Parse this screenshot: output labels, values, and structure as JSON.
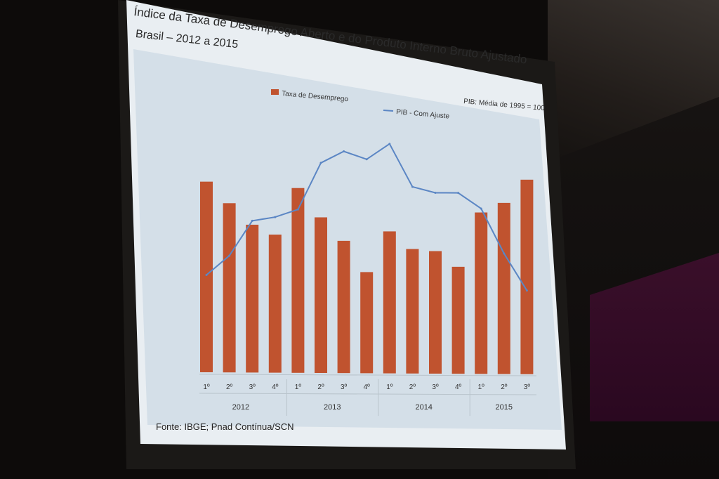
{
  "slide": {
    "title": "Índice da Taxa de Desemprego Aberto e do Produto Interno Bruto Ajustado",
    "subtitle": "Brasil – 2012 a 2015",
    "source": "Fonte: IBGE; Pnad Contínua/SCN"
  },
  "chart_data": {
    "type": "bar",
    "note": "PIB: Média de 1995 = 100",
    "categories": [
      "1º",
      "2º",
      "3º",
      "4º",
      "1º",
      "2º",
      "3º",
      "4º",
      "1º",
      "2º",
      "3º",
      "4º",
      "1º",
      "2º",
      "3º"
    ],
    "years": [
      {
        "label": "2012",
        "count": 4
      },
      {
        "label": "2013",
        "count": 4
      },
      {
        "label": "2014",
        "count": 4
      },
      {
        "label": "2015",
        "count": 3
      }
    ],
    "series": [
      {
        "name": "Taxa de Desemprego",
        "kind": "bar",
        "color": "#c0532f",
        "values": [
          98,
          87,
          76,
          71,
          95,
          80,
          68,
          52,
          73,
          64,
          63,
          55,
          83,
          88,
          100
        ]
      },
      {
        "name": "PIB - Com Ajuste",
        "kind": "line",
        "color": "#5b86c4",
        "values": [
          50,
          60,
          78,
          80,
          84,
          108,
          114,
          110,
          118,
          96,
          93,
          93,
          85,
          62,
          43
        ]
      }
    ],
    "ylim": [
      0,
      130
    ],
    "grid": false,
    "legend": "top"
  }
}
